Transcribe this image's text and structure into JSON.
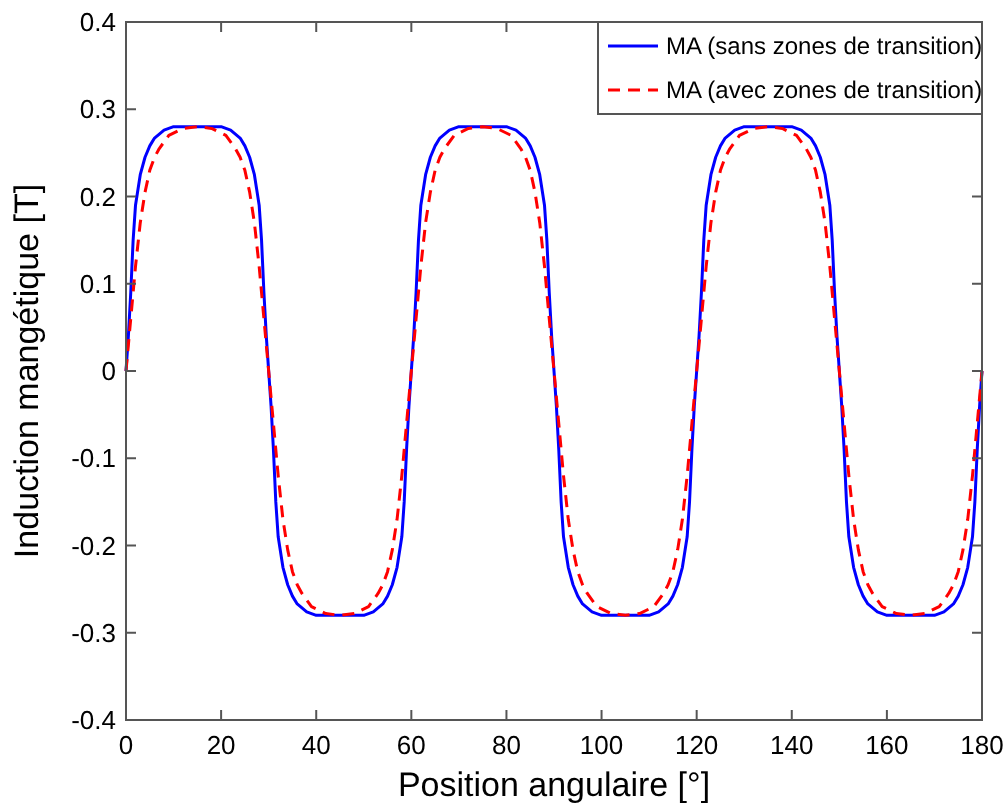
{
  "chart_data": {
    "type": "line",
    "xlabel": "Position angulaire [°]",
    "ylabel": "Induction mangétique [T]",
    "xlim": [
      0,
      180
    ],
    "xticks": [
      0,
      20,
      40,
      60,
      80,
      100,
      120,
      140,
      160,
      180
    ],
    "ylim": [
      -0.4,
      0.4
    ],
    "yticks": [
      -0.4,
      -0.3,
      -0.2,
      -0.1,
      0,
      0.1,
      0.2,
      0.3,
      0.4
    ],
    "grid": false,
    "legend": "top right",
    "series": [
      {
        "name": "MA (sans zones de transition)",
        "color": "#0000ff",
        "line_style": "solid",
        "x": [
          0,
          0.5,
          1,
          1.5,
          2,
          3,
          4,
          5,
          6,
          8,
          10,
          15,
          20,
          22,
          24,
          25,
          26,
          27,
          28,
          28.5,
          29,
          29.5,
          30,
          30.5,
          31,
          31.5,
          32,
          33,
          34,
          35,
          36,
          38,
          40,
          45,
          50,
          52,
          54,
          55,
          56,
          57,
          58,
          58.5,
          59,
          59.5,
          60,
          60.5,
          61,
          61.5,
          62,
          63,
          64,
          65,
          66,
          68,
          70,
          75,
          80,
          82,
          84,
          85,
          86,
          87,
          88,
          88.5,
          89,
          89.5,
          90,
          90.5,
          91,
          91.5,
          92,
          93,
          94,
          95,
          96,
          98,
          100,
          105,
          110,
          112,
          114,
          115,
          116,
          117,
          118,
          118.5,
          119,
          119.5,
          120,
          120.5,
          121,
          121.5,
          122,
          123,
          124,
          125,
          126,
          128,
          130,
          135,
          140,
          142,
          144,
          145,
          146,
          147,
          148,
          148.5,
          149,
          149.5,
          150,
          150.5,
          151,
          151.5,
          152,
          153,
          154,
          155,
          156,
          158,
          160,
          165,
          170,
          172,
          174,
          175,
          176,
          177,
          178,
          178.5,
          179,
          179.5,
          180
        ],
        "values": [
          0,
          0.04,
          0.09,
          0.15,
          0.19,
          0.225,
          0.245,
          0.258,
          0.267,
          0.276,
          0.28,
          0.28,
          0.28,
          0.276,
          0.267,
          0.258,
          0.245,
          0.225,
          0.19,
          0.15,
          0.09,
          0.04,
          0,
          -0.04,
          -0.09,
          -0.15,
          -0.19,
          -0.225,
          -0.245,
          -0.258,
          -0.267,
          -0.276,
          -0.28,
          -0.28,
          -0.28,
          -0.276,
          -0.267,
          -0.258,
          -0.245,
          -0.225,
          -0.19,
          -0.15,
          -0.09,
          -0.04,
          0,
          0.04,
          0.09,
          0.15,
          0.19,
          0.225,
          0.245,
          0.258,
          0.267,
          0.276,
          0.28,
          0.28,
          0.28,
          0.276,
          0.267,
          0.258,
          0.245,
          0.225,
          0.19,
          0.15,
          0.09,
          0.04,
          0,
          -0.04,
          -0.09,
          -0.15,
          -0.19,
          -0.225,
          -0.245,
          -0.258,
          -0.267,
          -0.276,
          -0.28,
          -0.28,
          -0.28,
          -0.276,
          -0.267,
          -0.258,
          -0.245,
          -0.225,
          -0.19,
          -0.15,
          -0.09,
          -0.04,
          0,
          0.04,
          0.09,
          0.15,
          0.19,
          0.225,
          0.245,
          0.258,
          0.267,
          0.276,
          0.28,
          0.28,
          0.28,
          0.276,
          0.267,
          0.258,
          0.245,
          0.225,
          0.19,
          0.15,
          0.09,
          0.04,
          0,
          -0.04,
          -0.09,
          -0.15,
          -0.19,
          -0.225,
          -0.245,
          -0.258,
          -0.267,
          -0.276,
          -0.28,
          -0.28,
          -0.28,
          -0.276,
          -0.267,
          -0.258,
          -0.245,
          -0.225,
          -0.19,
          -0.15,
          -0.09,
          -0.04,
          0
        ]
      },
      {
        "name": "MA (avec zones de transition)",
        "color": "#ff0000",
        "line_style": "dashed",
        "x": [
          0,
          1,
          2,
          3,
          4,
          5,
          6,
          7,
          9,
          12,
          15,
          18,
          21,
          23,
          24,
          25,
          26,
          27,
          28,
          29,
          30,
          31,
          32,
          33,
          34,
          35,
          36,
          37,
          39,
          42,
          45,
          48,
          51,
          53,
          54,
          55,
          56,
          57,
          58,
          59,
          60,
          61,
          62,
          63,
          64,
          65,
          66,
          67,
          69,
          72,
          75,
          78,
          81,
          83,
          84,
          85,
          86,
          87,
          88,
          89,
          90,
          91,
          92,
          93,
          94,
          95,
          96,
          97,
          99,
          102,
          105,
          108,
          111,
          113,
          114,
          115,
          116,
          117,
          118,
          119,
          120,
          121,
          122,
          123,
          124,
          125,
          126,
          127,
          129,
          132,
          135,
          138,
          141,
          143,
          144,
          145,
          146,
          147,
          148,
          149,
          150,
          151,
          152,
          153,
          154,
          155,
          156,
          157,
          159,
          162,
          165,
          168,
          171,
          173,
          174,
          175,
          176,
          177,
          178,
          179,
          180
        ],
        "values": [
          0,
          0.06,
          0.12,
          0.17,
          0.205,
          0.23,
          0.245,
          0.255,
          0.27,
          0.278,
          0.28,
          0.278,
          0.27,
          0.255,
          0.245,
          0.23,
          0.205,
          0.17,
          0.12,
          0.06,
          0,
          -0.06,
          -0.12,
          -0.17,
          -0.205,
          -0.23,
          -0.245,
          -0.255,
          -0.27,
          -0.278,
          -0.28,
          -0.278,
          -0.27,
          -0.255,
          -0.245,
          -0.23,
          -0.205,
          -0.17,
          -0.12,
          -0.06,
          0,
          0.06,
          0.12,
          0.17,
          0.205,
          0.23,
          0.245,
          0.255,
          0.27,
          0.278,
          0.28,
          0.278,
          0.27,
          0.255,
          0.245,
          0.23,
          0.205,
          0.17,
          0.12,
          0.06,
          0,
          -0.06,
          -0.12,
          -0.17,
          -0.205,
          -0.23,
          -0.245,
          -0.255,
          -0.27,
          -0.278,
          -0.28,
          -0.278,
          -0.27,
          -0.255,
          -0.245,
          -0.23,
          -0.205,
          -0.17,
          -0.12,
          -0.06,
          0,
          0.06,
          0.12,
          0.17,
          0.205,
          0.23,
          0.245,
          0.255,
          0.27,
          0.278,
          0.28,
          0.278,
          0.27,
          0.255,
          0.245,
          0.23,
          0.205,
          0.17,
          0.12,
          0.06,
          0,
          -0.06,
          -0.12,
          -0.17,
          -0.205,
          -0.23,
          -0.245,
          -0.255,
          -0.27,
          -0.278,
          -0.28,
          -0.278,
          -0.27,
          -0.255,
          -0.245,
          -0.23,
          -0.205,
          -0.17,
          -0.12,
          -0.06,
          0
        ]
      }
    ]
  }
}
